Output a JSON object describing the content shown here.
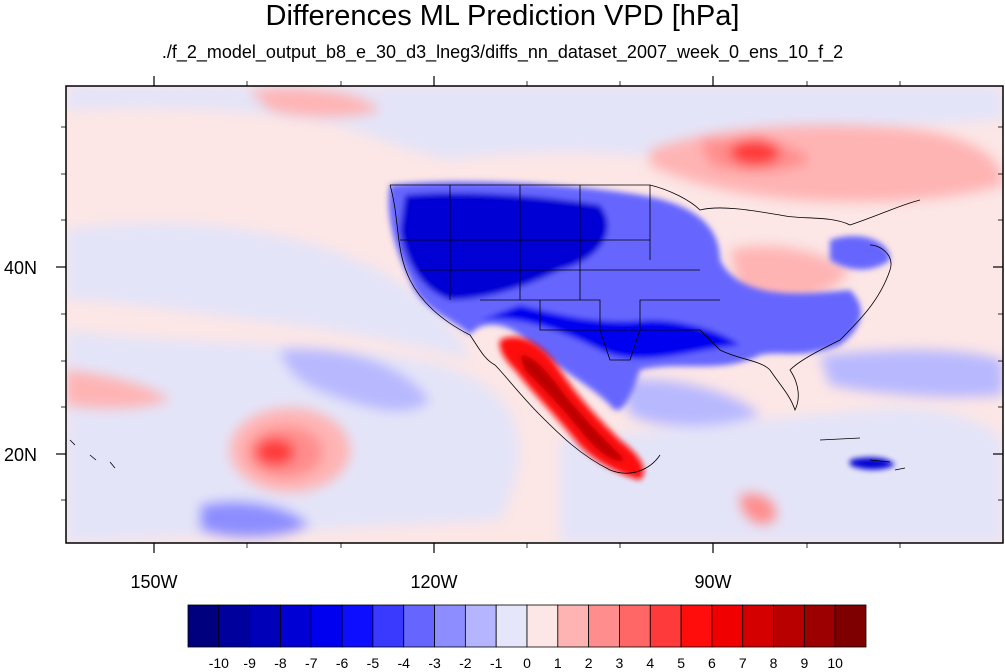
{
  "title": "Differences ML Prediction VPD [hPa]",
  "subtitle": "./f_2_model_output_b8_e_30_d3_lneg3/diffs_nn_dataset_2007_week_0_ens_10_f_2",
  "axes": {
    "lon_ticks": [
      "150W",
      "120W",
      "90W"
    ],
    "lat_ticks": [
      "40N",
      "20N"
    ]
  },
  "colorbar": {
    "labels": [
      "-10",
      "-9",
      "-8",
      "-7",
      "-6",
      "-5",
      "-4",
      "-3",
      "-2",
      "-1",
      "0",
      "1",
      "2",
      "3",
      "4",
      "5",
      "6",
      "7",
      "8",
      "9",
      "10"
    ],
    "colors": [
      "#00007f",
      "#00009c",
      "#0000b8",
      "#0000d4",
      "#0000f0",
      "#0d0dff",
      "#3a3aff",
      "#6666ff",
      "#8d8dff",
      "#b4b4ff",
      "#e6e6fa",
      "#fde6e6",
      "#ffb4b4",
      "#ff8d8d",
      "#ff6666",
      "#ff3a3a",
      "#ff0d0d",
      "#f00000",
      "#d40000",
      "#b80000",
      "#9c0000",
      "#7f0000"
    ]
  },
  "map": {
    "extent": {
      "lon": [
        -160,
        -62
      ],
      "lat": [
        11,
        59
      ]
    },
    "background_color": "#ffe8e8"
  }
}
